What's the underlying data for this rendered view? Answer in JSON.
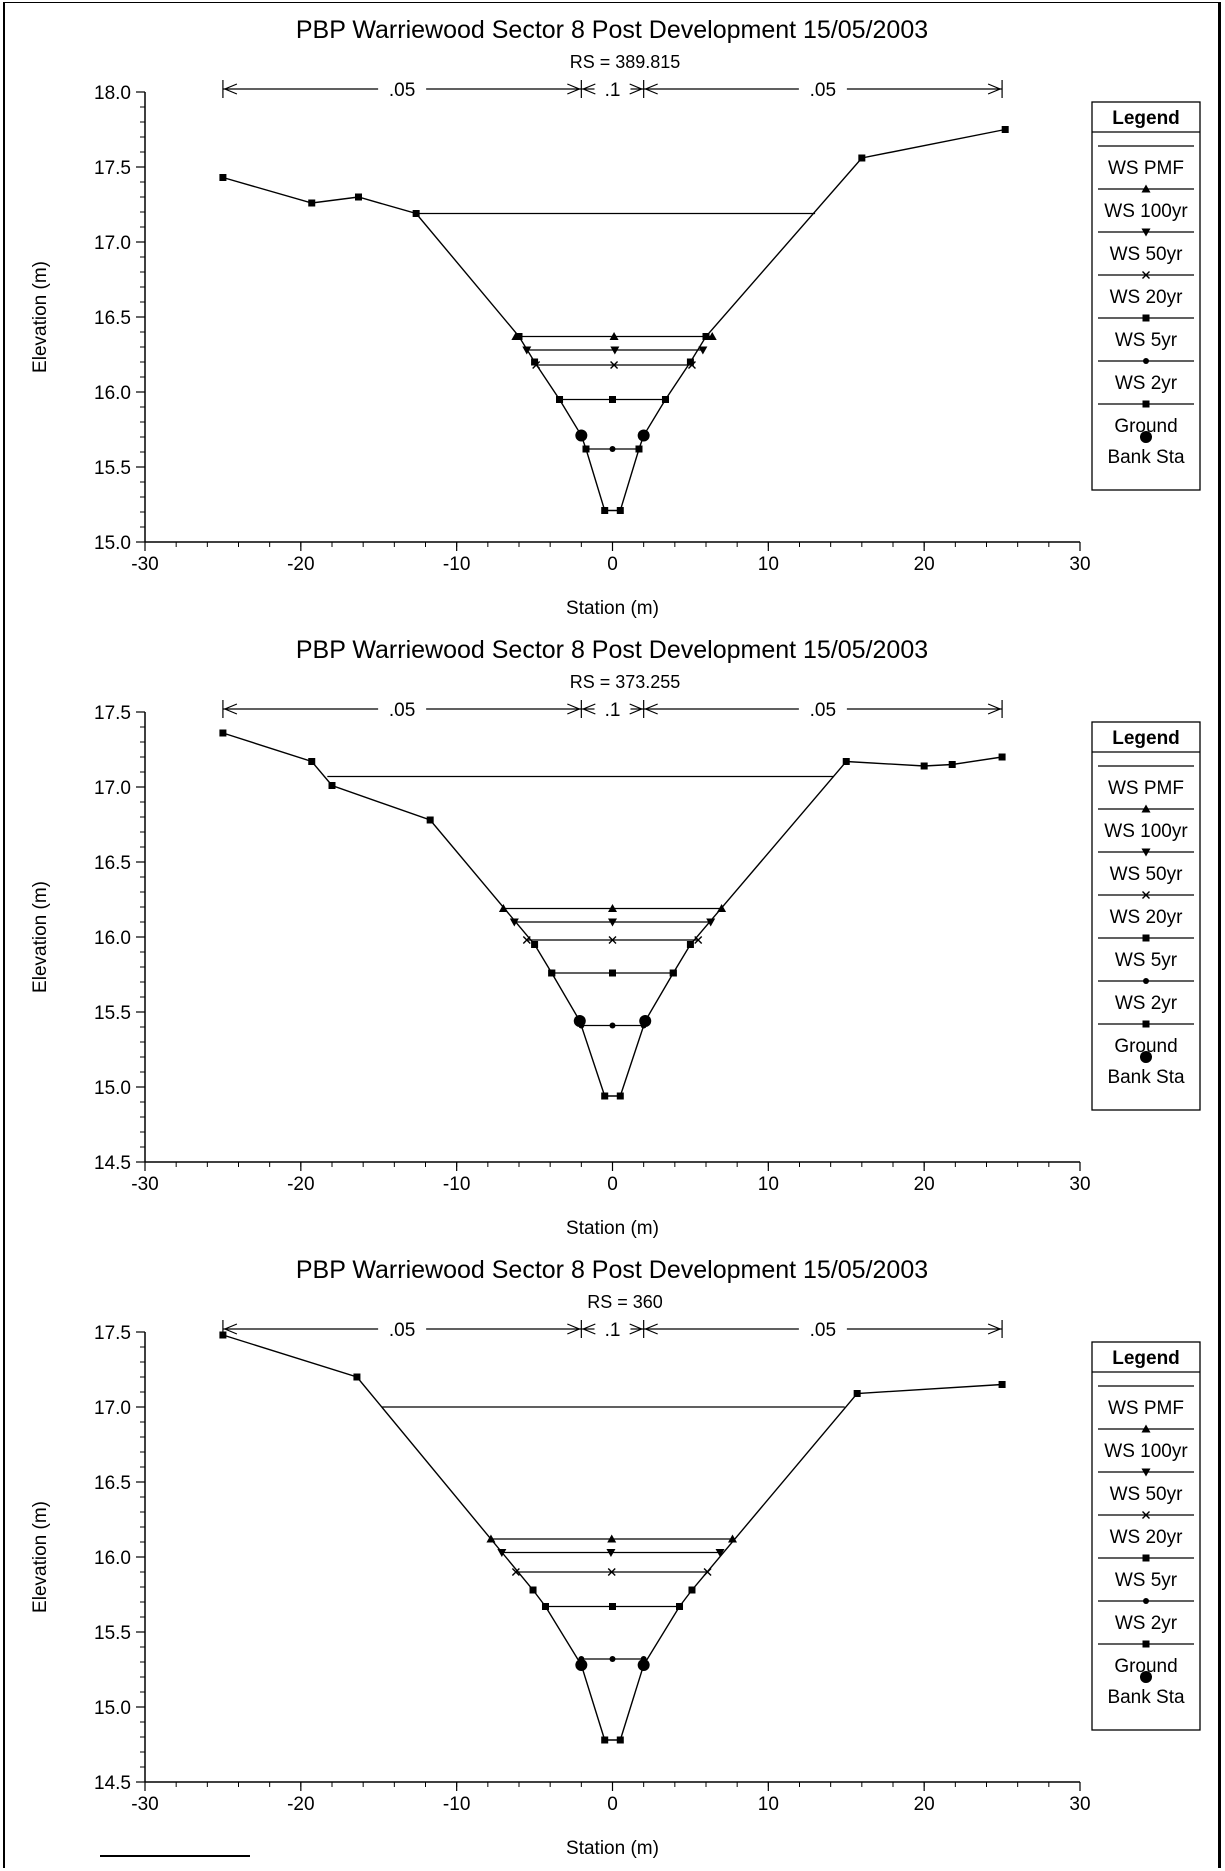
{
  "chart_data": [
    {
      "type": "line",
      "title": "PBP Warriewood Sector 8   Post Development    15/05/2003",
      "subtitle": "RS = 389.815",
      "xlabel": "Station (m)",
      "ylabel": "Elevation (m)",
      "xlim": [
        -30,
        30
      ],
      "ylim": [
        15.0,
        18.0
      ],
      "xticks": [
        "-30",
        "-20",
        "-10",
        "0",
        "10",
        "20",
        "30"
      ],
      "yticks": [
        "15.0",
        "15.5",
        "16.0",
        "16.5",
        "17.0",
        "17.5",
        "18.0"
      ],
      "ytick_values": [
        15.0,
        15.5,
        16.0,
        16.5,
        17.0,
        17.5,
        18.0
      ],
      "manning": {
        "segments": [
          {
            "label": ".05",
            "x0": -25,
            "x1": -2
          },
          {
            "label": ".1",
            "x0": -2,
            "x1": 2
          },
          {
            "label": ".05",
            "x0": 2,
            "x1": 25
          }
        ]
      },
      "legend": {
        "title": "Legend",
        "entries": [
          "WS PMF",
          "WS 100yr",
          "WS 50yr",
          "WS 20yr",
          "WS 5yr",
          "WS 2yr",
          "Ground",
          "Bank Sta"
        ],
        "markers": [
          "none",
          "triangle-up",
          "triangle-down",
          "x",
          "square",
          "dot",
          "square",
          "big-dot"
        ]
      },
      "ground": {
        "x": [
          -25,
          -19.3,
          -16.3,
          -12.6,
          -6,
          -5,
          -3.4,
          -2,
          -1.7,
          -0.5,
          0.5,
          1.7,
          2,
          3.4,
          5,
          6,
          16,
          25.2
        ],
        "y": [
          17.43,
          17.26,
          17.3,
          17.19,
          16.37,
          16.2,
          15.95,
          15.71,
          15.62,
          15.21,
          15.21,
          15.62,
          15.71,
          15.95,
          16.2,
          16.37,
          17.56,
          17.75
        ]
      },
      "bank_sta": {
        "x": [
          -2,
          2
        ],
        "y": [
          15.71,
          15.71
        ]
      },
      "water_surfaces": [
        {
          "name": "WS PMF",
          "marker": "none",
          "x0": -12.6,
          "x1": 13,
          "y": 17.19
        },
        {
          "name": "WS 100yr",
          "marker": "triangle-up",
          "x0": -6.2,
          "x1": 6.4,
          "y": 16.37
        },
        {
          "name": "WS 50yr",
          "marker": "triangle-down",
          "x0": -5.5,
          "x1": 5.8,
          "y": 16.28
        },
        {
          "name": "WS 20yr",
          "marker": "x",
          "x0": -4.9,
          "x1": 5.1,
          "y": 16.18
        },
        {
          "name": "WS 5yr",
          "marker": "square",
          "x0": -3.4,
          "x1": 3.4,
          "y": 15.95
        },
        {
          "name": "WS 2yr",
          "marker": "dot",
          "x0": -1.7,
          "x1": 1.7,
          "y": 15.62
        }
      ]
    },
    {
      "type": "line",
      "title": "PBP Warriewood Sector 8   Post Development    15/05/2003",
      "subtitle": "RS = 373.255",
      "xlabel": "Station (m)",
      "ylabel": "Elevation (m)",
      "xlim": [
        -30,
        30
      ],
      "ylim": [
        14.5,
        17.5
      ],
      "xticks": [
        "-30",
        "-20",
        "-10",
        "0",
        "10",
        "20",
        "30"
      ],
      "yticks": [
        "14.5",
        "15.0",
        "15.5",
        "16.0",
        "16.5",
        "17.0",
        "17.5"
      ],
      "ytick_values": [
        14.5,
        15.0,
        15.5,
        16.0,
        16.5,
        17.0,
        17.5
      ],
      "manning": {
        "segments": [
          {
            "label": ".05",
            "x0": -25,
            "x1": -2
          },
          {
            "label": ".1",
            "x0": -2,
            "x1": 2
          },
          {
            "label": ".05",
            "x0": 2,
            "x1": 25
          }
        ]
      },
      "legend": {
        "title": "Legend",
        "entries": [
          "WS PMF",
          "WS 100yr",
          "WS 50yr",
          "WS 20yr",
          "WS 5yr",
          "WS 2yr",
          "Ground",
          "Bank Sta"
        ],
        "markers": [
          "none",
          "triangle-up",
          "triangle-down",
          "x",
          "square",
          "dot",
          "square",
          "big-dot"
        ]
      },
      "ground": {
        "x": [
          -25,
          -19.3,
          -18,
          -11.7,
          -5,
          -3.9,
          -2.1,
          -0.5,
          0.5,
          2.1,
          3.9,
          5,
          15,
          20,
          21.8,
          25
        ],
        "y": [
          17.36,
          17.17,
          17.01,
          16.78,
          15.95,
          15.76,
          15.44,
          14.94,
          14.94,
          15.44,
          15.76,
          15.95,
          17.17,
          17.14,
          17.15,
          17.2
        ]
      },
      "bank_sta": {
        "x": [
          -2.1,
          2.1
        ],
        "y": [
          15.44,
          15.44
        ]
      },
      "water_surfaces": [
        {
          "name": "WS PMF",
          "marker": "none",
          "x0": -18.3,
          "x1": 14.2,
          "y": 17.07
        },
        {
          "name": "WS 100yr",
          "marker": "triangle-up",
          "x0": -7,
          "x1": 7,
          "y": 16.19
        },
        {
          "name": "WS 50yr",
          "marker": "triangle-down",
          "x0": -6.3,
          "x1": 6.3,
          "y": 16.1
        },
        {
          "name": "WS 20yr",
          "marker": "x",
          "x0": -5.5,
          "x1": 5.5,
          "y": 15.98
        },
        {
          "name": "WS 5yr",
          "marker": "square",
          "x0": -3.9,
          "x1": 3.9,
          "y": 15.76
        },
        {
          "name": "WS 2yr",
          "marker": "dot",
          "x0": -2,
          "x1": 2,
          "y": 15.41
        }
      ]
    },
    {
      "type": "line",
      "title": "PBP Warriewood Sector 8   Post Development    15/05/2003",
      "subtitle": "RS = 360",
      "xlabel": "Station (m)",
      "ylabel": "Elevation (m)",
      "xlim": [
        -30,
        30
      ],
      "ylim": [
        14.5,
        17.5
      ],
      "xticks": [
        "-30",
        "-20",
        "-10",
        "0",
        "10",
        "20",
        "30"
      ],
      "yticks": [
        "14.5",
        "15.0",
        "15.5",
        "16.0",
        "16.5",
        "17.0",
        "17.5"
      ],
      "ytick_values": [
        14.5,
        15.0,
        15.5,
        16.0,
        16.5,
        17.0,
        17.5
      ],
      "manning": {
        "segments": [
          {
            "label": ".05",
            "x0": -25,
            "x1": -2
          },
          {
            "label": ".1",
            "x0": -2,
            "x1": 2
          },
          {
            "label": ".05",
            "x0": 2,
            "x1": 25
          }
        ]
      },
      "legend": {
        "title": "Legend",
        "entries": [
          "WS PMF",
          "WS 100yr",
          "WS 50yr",
          "WS 20yr",
          "WS 5yr",
          "WS 2yr",
          "Ground",
          "Bank Sta"
        ],
        "markers": [
          "none",
          "triangle-up",
          "triangle-down",
          "x",
          "square",
          "dot",
          "square",
          "big-dot"
        ]
      },
      "ground": {
        "x": [
          -25,
          -16.4,
          -5.1,
          -4.3,
          -2,
          -0.5,
          0.5,
          2,
          4.3,
          5.1,
          15.7,
          25
        ],
        "y": [
          17.48,
          17.2,
          15.78,
          15.67,
          15.28,
          14.78,
          14.78,
          15.28,
          15.67,
          15.78,
          17.09,
          17.15
        ]
      },
      "bank_sta": {
        "x": [
          -2,
          2
        ],
        "y": [
          15.28,
          15.28
        ]
      },
      "water_surfaces": [
        {
          "name": "WS PMF",
          "marker": "none",
          "x0": -14.8,
          "x1": 14.9,
          "y": 17.0
        },
        {
          "name": "WS 100yr",
          "marker": "triangle-up",
          "x0": -7.8,
          "x1": 7.7,
          "y": 16.12
        },
        {
          "name": "WS 50yr",
          "marker": "triangle-down",
          "x0": -7.1,
          "x1": 6.9,
          "y": 16.03
        },
        {
          "name": "WS 20yr",
          "marker": "x",
          "x0": -6.2,
          "x1": 6.1,
          "y": 15.9
        },
        {
          "name": "WS 5yr",
          "marker": "square",
          "x0": -4.3,
          "x1": 4.3,
          "y": 15.67
        },
        {
          "name": "WS 2yr",
          "marker": "dot",
          "x0": -2,
          "x1": 2,
          "y": 15.32
        }
      ]
    }
  ]
}
